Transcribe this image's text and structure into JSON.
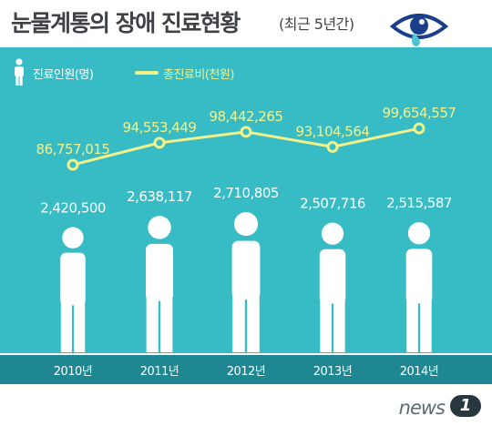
{
  "title": {
    "main": "눈물계통의 장애 진료현황",
    "sub": "(최근 5년간)"
  },
  "legend": {
    "patients_label": "진료인원(명)",
    "cost_label": "총진료비(천원)"
  },
  "colors": {
    "background": "#37bcc6",
    "bottom_band": "#1f8791",
    "person_fill": "#ffffff",
    "cost_line": "#f2f28a",
    "title_text": "#3f4347",
    "eye_icon": "#1a3f8a"
  },
  "icons": {
    "title": "eye-with-tear-icon",
    "patients": "person-icon",
    "cost": "line-marker-icon"
  },
  "chart_data": {
    "type": "bar",
    "categories": [
      "2010년",
      "2011년",
      "2012년",
      "2013년",
      "2014년"
    ],
    "series": [
      {
        "name": "진료인원(명)",
        "mark": "person-pictogram",
        "values": [
          2420500,
          2638117,
          2710805,
          2507716,
          2515587
        ],
        "labels": [
          "2,420,500",
          "2,638,117",
          "2,710,805",
          "2,507,716",
          "2,515,587"
        ]
      },
      {
        "name": "총진료비(천원)",
        "mark": "line",
        "values": [
          86757015,
          94553449,
          98442265,
          93104564,
          99654557
        ],
        "labels": [
          "86,757,015",
          "94,553,449",
          "98,442,265",
          "93,104,564",
          "99,654,557"
        ]
      }
    ],
    "xlabel": "",
    "ylabel": "",
    "grid": false,
    "legend_position": "top-left"
  },
  "source": {
    "brand": "news",
    "badge": "1"
  }
}
